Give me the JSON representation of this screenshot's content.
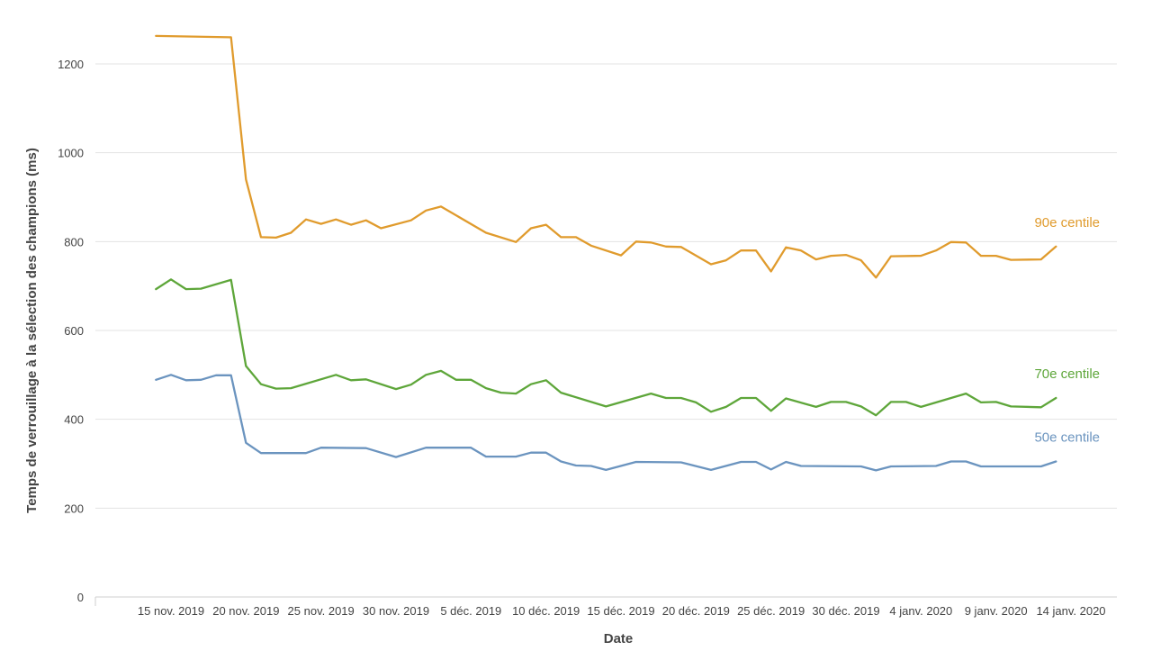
{
  "chart_data": {
    "type": "line",
    "xlabel": "Date",
    "ylabel": "Temps de verrouillage à la sélection des champions (ms)",
    "ylim": [
      0,
      1280
    ],
    "yticks": [
      0,
      200,
      400,
      600,
      800,
      1000,
      1200
    ],
    "grid": true,
    "legend": "inline-right",
    "x_start": "2019-11-15",
    "x_ticks": [
      {
        "date": "2019-11-15",
        "label": "15 nov. 2019"
      },
      {
        "date": "2019-11-20",
        "label": "20 nov. 2019"
      },
      {
        "date": "2019-11-25",
        "label": "25 nov. 2019"
      },
      {
        "date": "2019-11-30",
        "label": "30 nov. 2019"
      },
      {
        "date": "2019-12-05",
        "label": "5 déc. 2019"
      },
      {
        "date": "2019-12-10",
        "label": "10 déc. 2019"
      },
      {
        "date": "2019-12-15",
        "label": "15 déc. 2019"
      },
      {
        "date": "2019-12-20",
        "label": "20 déc. 2019"
      },
      {
        "date": "2019-12-25",
        "label": "25 déc. 2019"
      },
      {
        "date": "2019-12-30",
        "label": "30 déc. 2019"
      },
      {
        "date": "2020-01-04",
        "label": "4 janv. 2020"
      },
      {
        "date": "2020-01-09",
        "label": "9 janv. 2020"
      },
      {
        "date": "2020-01-14",
        "label": "14 janv. 2020"
      }
    ],
    "series": [
      {
        "name": "90e centile",
        "color": "#e09b2d",
        "points": [
          {
            "x": "2019-11-14",
            "y": 1263
          },
          {
            "x": "2019-11-19",
            "y": 1260
          },
          {
            "x": "2019-11-20",
            "y": 940
          },
          {
            "x": "2019-11-21",
            "y": 810
          },
          {
            "x": "2019-11-22",
            "y": 809
          },
          {
            "x": "2019-11-23",
            "y": 820
          },
          {
            "x": "2019-11-24",
            "y": 850
          },
          {
            "x": "2019-11-25",
            "y": 840
          },
          {
            "x": "2019-11-26",
            "y": 850
          },
          {
            "x": "2019-11-27",
            "y": 838
          },
          {
            "x": "2019-11-28",
            "y": 848
          },
          {
            "x": "2019-11-29",
            "y": 830
          },
          {
            "x": "2019-12-01",
            "y": 848
          },
          {
            "x": "2019-12-02",
            "y": 870
          },
          {
            "x": "2019-12-03",
            "y": 879
          },
          {
            "x": "2019-12-06",
            "y": 820
          },
          {
            "x": "2019-12-08",
            "y": 799
          },
          {
            "x": "2019-12-09",
            "y": 830
          },
          {
            "x": "2019-12-10",
            "y": 838
          },
          {
            "x": "2019-12-11",
            "y": 810
          },
          {
            "x": "2019-12-12",
            "y": 810
          },
          {
            "x": "2019-12-13",
            "y": 791
          },
          {
            "x": "2019-12-15",
            "y": 769
          },
          {
            "x": "2019-12-16",
            "y": 800
          },
          {
            "x": "2019-12-17",
            "y": 798
          },
          {
            "x": "2019-12-18",
            "y": 789
          },
          {
            "x": "2019-12-19",
            "y": 788
          },
          {
            "x": "2019-12-21",
            "y": 749
          },
          {
            "x": "2019-12-22",
            "y": 758
          },
          {
            "x": "2019-12-23",
            "y": 780
          },
          {
            "x": "2019-12-24",
            "y": 780
          },
          {
            "x": "2019-12-25",
            "y": 733
          },
          {
            "x": "2019-12-26",
            "y": 787
          },
          {
            "x": "2019-12-27",
            "y": 780
          },
          {
            "x": "2019-12-28",
            "y": 760
          },
          {
            "x": "2019-12-29",
            "y": 768
          },
          {
            "x": "2019-12-30",
            "y": 770
          },
          {
            "x": "2019-12-31",
            "y": 758
          },
          {
            "x": "2020-01-01",
            "y": 719
          },
          {
            "x": "2020-01-02",
            "y": 767
          },
          {
            "x": "2020-01-04",
            "y": 768
          },
          {
            "x": "2020-01-05",
            "y": 780
          },
          {
            "x": "2020-01-06",
            "y": 799
          },
          {
            "x": "2020-01-07",
            "y": 798
          },
          {
            "x": "2020-01-08",
            "y": 768
          },
          {
            "x": "2020-01-09",
            "y": 768
          },
          {
            "x": "2020-01-10",
            "y": 759
          },
          {
            "x": "2020-01-12",
            "y": 760
          },
          {
            "x": "2020-01-13",
            "y": 789
          }
        ]
      },
      {
        "name": "70e centile",
        "color": "#5ea63a",
        "points": [
          {
            "x": "2019-11-14",
            "y": 693
          },
          {
            "x": "2019-11-15",
            "y": 715
          },
          {
            "x": "2019-11-16",
            "y": 693
          },
          {
            "x": "2019-11-17",
            "y": 694
          },
          {
            "x": "2019-11-19",
            "y": 714
          },
          {
            "x": "2019-11-20",
            "y": 520
          },
          {
            "x": "2019-11-21",
            "y": 479
          },
          {
            "x": "2019-11-22",
            "y": 469
          },
          {
            "x": "2019-11-23",
            "y": 470
          },
          {
            "x": "2019-11-26",
            "y": 500
          },
          {
            "x": "2019-11-27",
            "y": 488
          },
          {
            "x": "2019-11-28",
            "y": 490
          },
          {
            "x": "2019-11-30",
            "y": 468
          },
          {
            "x": "2019-12-01",
            "y": 478
          },
          {
            "x": "2019-12-02",
            "y": 500
          },
          {
            "x": "2019-12-03",
            "y": 509
          },
          {
            "x": "2019-12-04",
            "y": 489
          },
          {
            "x": "2019-12-05",
            "y": 489
          },
          {
            "x": "2019-12-06",
            "y": 470
          },
          {
            "x": "2019-12-07",
            "y": 460
          },
          {
            "x": "2019-12-08",
            "y": 458
          },
          {
            "x": "2019-12-09",
            "y": 479
          },
          {
            "x": "2019-12-10",
            "y": 488
          },
          {
            "x": "2019-12-11",
            "y": 460
          },
          {
            "x": "2019-12-14",
            "y": 429
          },
          {
            "x": "2019-12-17",
            "y": 458
          },
          {
            "x": "2019-12-18",
            "y": 448
          },
          {
            "x": "2019-12-19",
            "y": 448
          },
          {
            "x": "2019-12-20",
            "y": 438
          },
          {
            "x": "2019-12-21",
            "y": 417
          },
          {
            "x": "2019-12-22",
            "y": 428
          },
          {
            "x": "2019-12-23",
            "y": 448
          },
          {
            "x": "2019-12-24",
            "y": 448
          },
          {
            "x": "2019-12-25",
            "y": 419
          },
          {
            "x": "2019-12-26",
            "y": 447
          },
          {
            "x": "2019-12-28",
            "y": 428
          },
          {
            "x": "2019-12-29",
            "y": 439
          },
          {
            "x": "2019-12-30",
            "y": 439
          },
          {
            "x": "2019-12-31",
            "y": 429
          },
          {
            "x": "2020-01-01",
            "y": 409
          },
          {
            "x": "2020-01-02",
            "y": 439
          },
          {
            "x": "2020-01-03",
            "y": 439
          },
          {
            "x": "2020-01-04",
            "y": 428
          },
          {
            "x": "2020-01-07",
            "y": 458
          },
          {
            "x": "2020-01-08",
            "y": 438
          },
          {
            "x": "2020-01-09",
            "y": 439
          },
          {
            "x": "2020-01-10",
            "y": 429
          },
          {
            "x": "2020-01-12",
            "y": 427
          },
          {
            "x": "2020-01-13",
            "y": 448
          }
        ]
      },
      {
        "name": "50e centile",
        "color": "#6b94bf",
        "points": [
          {
            "x": "2019-11-14",
            "y": 489
          },
          {
            "x": "2019-11-15",
            "y": 500
          },
          {
            "x": "2019-11-16",
            "y": 488
          },
          {
            "x": "2019-11-17",
            "y": 489
          },
          {
            "x": "2019-11-18",
            "y": 499
          },
          {
            "x": "2019-11-19",
            "y": 499
          },
          {
            "x": "2019-11-20",
            "y": 347
          },
          {
            "x": "2019-11-21",
            "y": 324
          },
          {
            "x": "2019-11-24",
            "y": 324
          },
          {
            "x": "2019-11-25",
            "y": 336
          },
          {
            "x": "2019-11-28",
            "y": 335
          },
          {
            "x": "2019-11-30",
            "y": 315
          },
          {
            "x": "2019-12-02",
            "y": 336
          },
          {
            "x": "2019-12-05",
            "y": 336
          },
          {
            "x": "2019-12-06",
            "y": 316
          },
          {
            "x": "2019-12-08",
            "y": 316
          },
          {
            "x": "2019-12-09",
            "y": 325
          },
          {
            "x": "2019-12-10",
            "y": 325
          },
          {
            "x": "2019-12-11",
            "y": 305
          },
          {
            "x": "2019-12-12",
            "y": 296
          },
          {
            "x": "2019-12-13",
            "y": 295
          },
          {
            "x": "2019-12-14",
            "y": 286
          },
          {
            "x": "2019-12-16",
            "y": 304
          },
          {
            "x": "2019-12-19",
            "y": 303
          },
          {
            "x": "2019-12-21",
            "y": 286
          },
          {
            "x": "2019-12-23",
            "y": 304
          },
          {
            "x": "2019-12-24",
            "y": 304
          },
          {
            "x": "2019-12-25",
            "y": 287
          },
          {
            "x": "2019-12-26",
            "y": 304
          },
          {
            "x": "2019-12-27",
            "y": 295
          },
          {
            "x": "2019-12-31",
            "y": 294
          },
          {
            "x": "2020-01-01",
            "y": 285
          },
          {
            "x": "2020-01-02",
            "y": 294
          },
          {
            "x": "2020-01-05",
            "y": 295
          },
          {
            "x": "2020-01-06",
            "y": 305
          },
          {
            "x": "2020-01-07",
            "y": 305
          },
          {
            "x": "2020-01-08",
            "y": 294
          },
          {
            "x": "2020-01-12",
            "y": 294
          },
          {
            "x": "2020-01-13",
            "y": 305
          }
        ]
      }
    ]
  }
}
